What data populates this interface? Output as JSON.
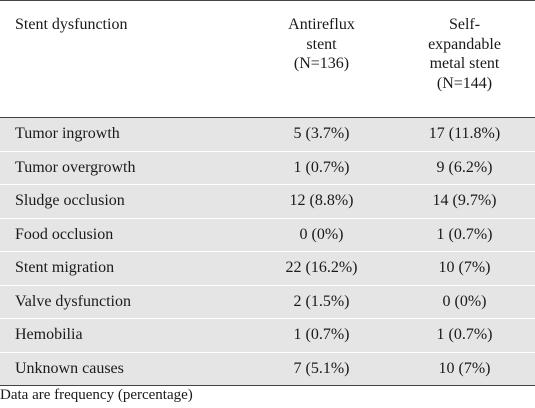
{
  "table": {
    "headers": {
      "col1": "Stent dysfunction",
      "col2": [
        "Antireflux",
        "stent",
        "(N=136)"
      ],
      "col3": [
        "Self-",
        "expandable",
        "metal stent",
        "(N=144)"
      ]
    },
    "rows": [
      {
        "name": "Tumor ingrowth",
        "antireflux": "5 (3.7%)",
        "sems": "17 (11.8%)"
      },
      {
        "name": "Tumor overgrowth",
        "antireflux": "1 (0.7%)",
        "sems": "9 (6.2%)"
      },
      {
        "name": "Sludge occlusion",
        "antireflux": "12 (8.8%)",
        "sems": "14 (9.7%)"
      },
      {
        "name": "Food occlusion",
        "antireflux": "0 (0%)",
        "sems": "1 (0.7%)"
      },
      {
        "name": "Stent migration",
        "antireflux": "22 (16.2%)",
        "sems": "10 (7%)"
      },
      {
        "name": "Valve dysfunction",
        "antireflux": "2 (1.5%)",
        "sems": "0 (0%)"
      },
      {
        "name": "Hemobilia",
        "antireflux": "1 (0.7%)",
        "sems": "1 (0.7%)"
      },
      {
        "name": "Unknown causes",
        "antireflux": "7 (5.1%)",
        "sems": "10 (7%)"
      }
    ],
    "footnote": "Data are frequency (percentage)"
  }
}
